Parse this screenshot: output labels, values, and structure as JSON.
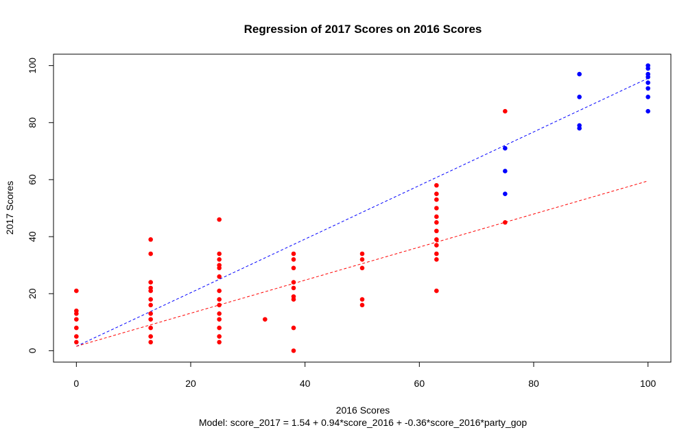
{
  "chart_data": {
    "type": "scatter",
    "title": "Regression of 2017 Scores on 2016 Scores",
    "xlabel": "2016 Scores",
    "ylabel": "2017 Scores",
    "note": "Model: score_2017 = 1.54 + 0.94*score_2016 + -0.36*score_2016*party_gop",
    "xlim": [
      -4,
      104
    ],
    "ylim": [
      -4,
      104
    ],
    "x_ticks": [
      0,
      20,
      40,
      60,
      80,
      100
    ],
    "y_ticks": [
      0,
      20,
      40,
      60,
      80,
      100
    ],
    "grid": false,
    "legend": "none",
    "series": [
      {
        "color": "#ff0000",
        "points": [
          [
            0,
            21
          ],
          [
            0,
            14
          ],
          [
            0,
            13
          ],
          [
            0,
            11
          ],
          [
            0,
            8
          ],
          [
            0,
            5
          ],
          [
            0,
            3
          ],
          [
            13,
            39
          ],
          [
            13,
            34
          ],
          [
            13,
            24
          ],
          [
            13,
            22
          ],
          [
            13,
            21
          ],
          [
            13,
            18
          ],
          [
            13,
            16
          ],
          [
            13,
            13
          ],
          [
            13,
            11
          ],
          [
            13,
            8
          ],
          [
            13,
            5
          ],
          [
            13,
            3
          ],
          [
            25,
            46
          ],
          [
            25,
            34
          ],
          [
            25,
            32
          ],
          [
            25,
            30
          ],
          [
            25,
            29
          ],
          [
            25,
            26
          ],
          [
            25,
            21
          ],
          [
            25,
            18
          ],
          [
            25,
            16
          ],
          [
            25,
            13
          ],
          [
            25,
            11
          ],
          [
            25,
            8
          ],
          [
            25,
            5
          ],
          [
            25,
            3
          ],
          [
            33,
            11
          ],
          [
            38,
            34
          ],
          [
            38,
            32
          ],
          [
            38,
            29
          ],
          [
            38,
            24
          ],
          [
            38,
            22
          ],
          [
            38,
            19
          ],
          [
            38,
            18
          ],
          [
            38,
            8
          ],
          [
            38,
            0
          ],
          [
            50,
            34
          ],
          [
            50,
            32
          ],
          [
            50,
            29
          ],
          [
            50,
            18
          ],
          [
            50,
            16
          ],
          [
            63,
            58
          ],
          [
            63,
            55
          ],
          [
            63,
            53
          ],
          [
            63,
            50
          ],
          [
            63,
            47
          ],
          [
            63,
            45
          ],
          [
            63,
            42
          ],
          [
            63,
            39
          ],
          [
            63,
            37
          ],
          [
            63,
            34
          ],
          [
            63,
            32
          ],
          [
            63,
            21
          ],
          [
            75,
            84
          ],
          [
            75,
            45
          ]
        ]
      },
      {
        "color": "#0000ff",
        "points": [
          [
            75,
            71
          ],
          [
            75,
            63
          ],
          [
            75,
            55
          ],
          [
            88,
            97
          ],
          [
            88,
            89
          ],
          [
            88,
            79
          ],
          [
            88,
            78
          ],
          [
            100,
            100
          ],
          [
            100,
            99
          ],
          [
            100,
            97
          ],
          [
            100,
            96
          ],
          [
            100,
            94
          ],
          [
            100,
            92
          ],
          [
            100,
            89
          ],
          [
            100,
            84
          ]
        ]
      }
    ],
    "lines": [
      {
        "color": "#0000ff",
        "dash": true,
        "x": [
          0,
          100
        ],
        "y": [
          1.54,
          95.54
        ]
      },
      {
        "color": "#ff0000",
        "dash": true,
        "x": [
          0,
          100
        ],
        "y": [
          1.54,
          59.54
        ]
      }
    ]
  }
}
